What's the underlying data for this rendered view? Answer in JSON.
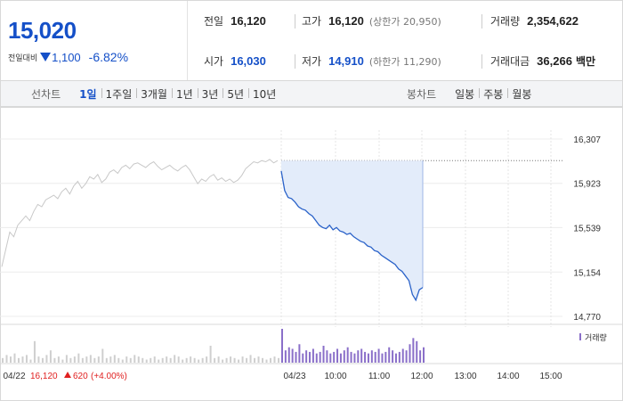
{
  "quote": {
    "price": "15,020",
    "change_label": "전일대비",
    "change_amount": "1,100",
    "change_percent": "-6.82%",
    "prev_close": {
      "label": "전일",
      "value": "16,120"
    },
    "high": {
      "label": "고가",
      "value": "16,120",
      "limit_label": "(상한가 20,950)"
    },
    "volume": {
      "label": "거래량",
      "value": "2,354,622"
    },
    "open": {
      "label": "시가",
      "value": "16,030"
    },
    "low": {
      "label": "저가",
      "value": "14,910",
      "limit_label": "(하한가 11,290)"
    },
    "turnover": {
      "label": "거래대금",
      "value": "36,266",
      "unit": "백만"
    },
    "colors": {
      "down": "#1550c8",
      "up": "#e02020"
    }
  },
  "tabs": {
    "line_title": "선차트",
    "line_tabs": [
      "1일",
      "1주일",
      "3개월",
      "1년",
      "3년",
      "5년",
      "10년"
    ],
    "active_line_tab": "1일",
    "candle_title": "봉차트",
    "candle_tabs": [
      "일봉",
      "주봉",
      "월봉"
    ]
  },
  "chart_data": {
    "type": "line",
    "y_ticks": [
      "16,307",
      "15,923",
      "15,539",
      "15,154",
      "14,770"
    ],
    "ylim": [
      14770,
      16307
    ],
    "prev_close_line": 16120,
    "prev_day": {
      "date": "04/22",
      "close": "16,120",
      "change": "620",
      "change_pct": "(+4.00%)",
      "values": [
        15200,
        15350,
        15500,
        15460,
        15560,
        15600,
        15640,
        15600,
        15680,
        15740,
        15720,
        15780,
        15800,
        15820,
        15790,
        15850,
        15880,
        15830,
        15900,
        15940,
        15880,
        15920,
        15980,
        15960,
        16000,
        15930,
        15960,
        16020,
        16040,
        16010,
        16060,
        16080,
        16050,
        16090,
        16100,
        16080,
        16060,
        16090,
        16110,
        16070,
        16040,
        16060,
        16080,
        16050,
        16030,
        16060,
        16080,
        16040,
        15980,
        15920,
        15960,
        15940,
        15980,
        16000,
        15950,
        15970,
        15940,
        15960,
        15930,
        15950,
        15990,
        16050,
        16080,
        16110,
        16100,
        16120,
        16110,
        16130,
        16100,
        16120
      ]
    },
    "today": {
      "date": "04/23",
      "values": [
        16030,
        15860,
        15800,
        15790,
        15760,
        15720,
        15700,
        15690,
        15660,
        15640,
        15600,
        15560,
        15540,
        15530,
        15560,
        15520,
        15540,
        15510,
        15500,
        15480,
        15490,
        15460,
        15440,
        15420,
        15410,
        15380,
        15370,
        15340,
        15330,
        15300,
        15280,
        15260,
        15240,
        15220,
        15180,
        15160,
        15120,
        15080,
        14960,
        14910,
        15000,
        15020
      ]
    },
    "x_ticks": [
      "04/22",
      "04/23",
      "10:00",
      "11:00",
      "12:00",
      "13:00",
      "14:00",
      "15:00"
    ],
    "volume_legend": "거래량",
    "volume_prev": [
      3,
      5,
      4,
      6,
      3,
      4,
      5,
      2,
      14,
      4,
      3,
      5,
      8,
      3,
      4,
      2,
      5,
      3,
      4,
      6,
      3,
      4,
      5,
      3,
      4,
      9,
      3,
      4,
      5,
      3,
      2,
      4,
      3,
      5,
      4,
      3,
      2,
      3,
      4,
      2,
      3,
      4,
      3,
      5,
      4,
      2,
      3,
      4,
      3,
      2,
      3,
      4,
      11,
      3,
      4,
      2,
      3,
      4,
      3,
      2,
      4,
      3,
      5,
      3,
      4,
      3,
      2,
      3,
      4,
      3
    ],
    "volume_today": [
      22,
      8,
      10,
      9,
      7,
      12,
      6,
      8,
      7,
      9,
      6,
      7,
      11,
      8,
      6,
      7,
      9,
      6,
      8,
      10,
      7,
      6,
      8,
      9,
      7,
      6,
      8,
      7,
      9,
      6,
      7,
      10,
      8,
      6,
      7,
      9,
      8,
      12,
      16,
      14,
      8,
      10
    ]
  }
}
